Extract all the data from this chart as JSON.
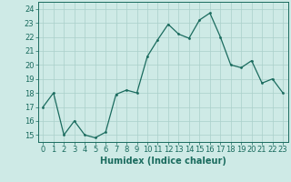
{
  "x": [
    0,
    1,
    2,
    3,
    4,
    5,
    6,
    7,
    8,
    9,
    10,
    11,
    12,
    13,
    14,
    15,
    16,
    17,
    18,
    19,
    20,
    21,
    22,
    23
  ],
  "y": [
    17,
    18,
    15,
    16,
    15,
    14.8,
    15.2,
    17.9,
    18.2,
    18,
    20.6,
    21.8,
    22.9,
    22.2,
    21.9,
    23.2,
    23.7,
    22,
    20,
    19.8,
    20.3,
    18.7,
    19,
    18
  ],
  "line_color": "#1a6b5e",
  "bg_color": "#ceeae6",
  "grid_color": "#aacfca",
  "xlabel": "Humidex (Indice chaleur)",
  "ylabel_ticks": [
    15,
    16,
    17,
    18,
    19,
    20,
    21,
    22,
    23,
    24
  ],
  "ylim": [
    14.5,
    24.5
  ],
  "xlim": [
    -0.5,
    23.5
  ],
  "xlabel_fontsize": 7,
  "tick_fontsize": 6,
  "linewidth": 0.9,
  "markersize": 2.0
}
